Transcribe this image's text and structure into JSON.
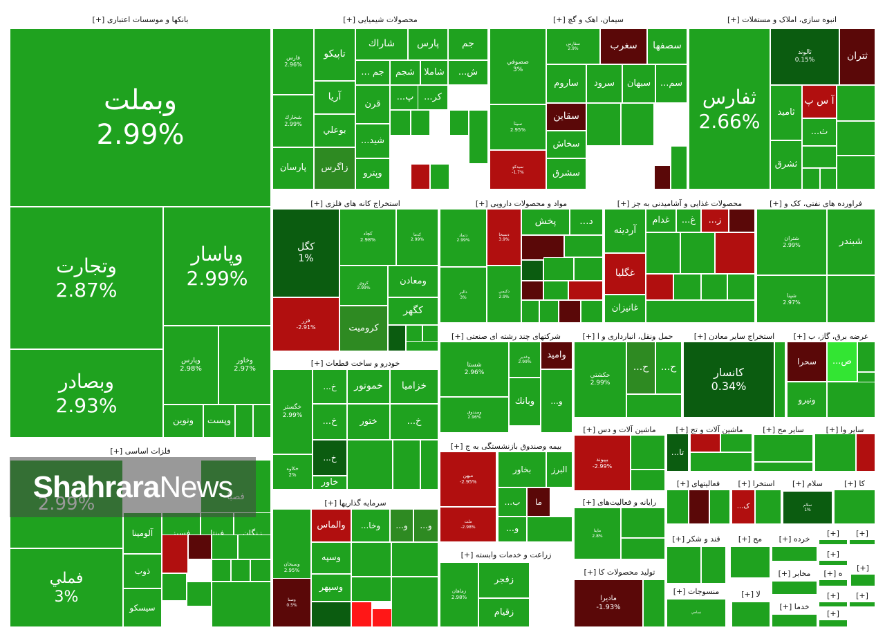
{
  "colors": {
    "G": "#1fa21f",
    "D": "#0b5c10",
    "M": "#2e8a22",
    "R": "#b10f0f",
    "M2": "#5a0808",
    "BR": "#ff1717",
    "LG": "#33e533"
  },
  "watermark": {
    "bold": "Shahrara",
    "light": "News"
  },
  "sectors": [
    {
      "title": "بانکها و موسسات اعتباری [+]",
      "tiles": [
        {
          "name": "وبملت",
          "pct": "2.99%",
          "c": "G"
        },
        {
          "name": "وتجارت",
          "pct": "2.87%",
          "c": "G"
        },
        {
          "name": "وپاسار",
          "pct": "2.99%",
          "c": "G"
        },
        {
          "name": "وبصادر",
          "pct": "2.93%",
          "c": "G"
        },
        {
          "name": "وپارس",
          "pct": "2.98%",
          "c": "G"
        },
        {
          "name": "وخاور",
          "pct": "2.97%",
          "c": "G"
        },
        {
          "name": "ونوین",
          "c": "G"
        },
        {
          "name": "وپست",
          "c": "G"
        },
        {
          "c": "G"
        },
        {
          "c": "G"
        }
      ]
    },
    {
      "title": "فلزات اساسی [+]",
      "tiles": [
        {
          "pct": "2.99%",
          "c": "G"
        },
        {
          "name": "فصبا",
          "c": "G"
        },
        {
          "name": "فملي",
          "pct": "3%",
          "c": "G"
        },
        {
          "name": "آلومينا",
          "c": "G"
        },
        {
          "name": "فسبز",
          "c": "G"
        },
        {
          "name": "فپنتا",
          "c": "G"
        },
        {
          "name": "زنگان",
          "c": "G"
        },
        {
          "name": "ذوب",
          "c": "G"
        },
        {
          "name": "سيسكو",
          "c": "G"
        },
        {
          "c": "R"
        },
        {
          "c": "M2"
        },
        {
          "c": "G"
        },
        {
          "c": "G"
        },
        {
          "c": "G"
        },
        {
          "c": "G"
        },
        {
          "c": "G"
        },
        {
          "c": "G"
        },
        {
          "c": "G"
        },
        {
          "c": "G"
        }
      ]
    },
    {
      "title": "محصولات شیمیایی [+]",
      "tiles": [
        {
          "name": "جم",
          "c": "G"
        },
        {
          "name": "پارس",
          "c": "G"
        },
        {
          "name": "شاراك",
          "c": "G"
        },
        {
          "name": "تاپيكو",
          "c": "G"
        },
        {
          "name": "فارس",
          "pct": "2.96%",
          "c": "G"
        },
        {
          "name": "آريا",
          "c": "G"
        },
        {
          "name": "جم ...",
          "c": "G"
        },
        {
          "name": "شجم",
          "c": "G"
        },
        {
          "name": "شاملا",
          "c": "G"
        },
        {
          "name": "ش...",
          "c": "G"
        },
        {
          "name": "پ...",
          "c": "G"
        },
        {
          "name": "كر...",
          "c": "G"
        },
        {
          "name": "قرن",
          "c": "G"
        },
        {
          "name": "شخارك",
          "pct": "2.99%",
          "c": "G"
        },
        {
          "name": "بوعلي",
          "c": "G"
        },
        {
          "name": "شيد...",
          "c": "G"
        },
        {
          "name": "پارسان",
          "c": "G"
        },
        {
          "name": "زاگرس",
          "c": "M"
        },
        {
          "name": "وپترو",
          "c": "G"
        },
        {
          "c": "R"
        },
        {
          "c": "G"
        },
        {
          "c": "G"
        },
        {
          "c": "G"
        },
        {
          "c": "G"
        },
        {
          "c": "G"
        }
      ]
    },
    {
      "title": "سیمان، اهک و گچ [+]",
      "tiles": [
        {
          "name": "صصوفي",
          "pct": "3%",
          "c": "G"
        },
        {
          "name": "سفارس",
          "pct": "2.9%",
          "c": "G"
        },
        {
          "name": "سغرب",
          "c": "M2"
        },
        {
          "name": "سصفها",
          "c": "G"
        },
        {
          "name": "ساروم",
          "c": "G"
        },
        {
          "name": "سرود",
          "c": "G"
        },
        {
          "name": "سبهان",
          "c": "G"
        },
        {
          "name": "سم...",
          "c": "G"
        },
        {
          "name": "سيتا",
          "pct": "2.95%",
          "c": "G"
        },
        {
          "name": "سقاين",
          "c": "M2"
        },
        {
          "name": "سخاش",
          "c": "G"
        },
        {
          "name": "سيدكو",
          "pct": "-1.7%",
          "c": "R"
        },
        {
          "name": "سشرق",
          "c": "G"
        },
        {
          "c": "G"
        },
        {
          "c": "G"
        },
        {
          "c": "M2"
        },
        {
          "c": "G"
        }
      ]
    },
    {
      "title": "انبوه سازی، املاک و مستغلات [+]",
      "tiles": [
        {
          "name": "ثفارس",
          "pct": "2.66%",
          "c": "G"
        },
        {
          "name": "ثالوند",
          "pct": "0.15%",
          "c": "D"
        },
        {
          "name": "ثتران",
          "c": "M2"
        },
        {
          "name": "آ س پ",
          "c": "R"
        },
        {
          "name": "ثاميد",
          "c": "G"
        },
        {
          "name": "ث...",
          "c": "G"
        },
        {
          "name": "ثشرق",
          "c": "G"
        },
        {
          "c": "G"
        },
        {
          "c": "G"
        },
        {
          "c": "G"
        },
        {
          "c": "G"
        },
        {
          "c": "G"
        },
        {
          "c": "G"
        }
      ]
    },
    {
      "title": "استخراج کانه های فلزی [+]",
      "tiles": [
        {
          "name": "كگل",
          "pct": "1%",
          "c": "D"
        },
        {
          "name": "كچاد",
          "pct": "2.98%",
          "c": "G"
        },
        {
          "name": "كدما",
          "pct": "2.99%",
          "c": "G"
        },
        {
          "name": "فزر",
          "pct": "-2.91%",
          "c": "R"
        },
        {
          "name": "كروي",
          "pct": "2.99%",
          "c": "G"
        },
        {
          "name": "ومعادن",
          "c": "G"
        },
        {
          "name": "كگهر",
          "c": "G"
        },
        {
          "name": "كروميت",
          "c": "M"
        },
        {
          "c": "D"
        },
        {
          "c": "G"
        },
        {
          "c": "G"
        },
        {
          "c": "G"
        }
      ]
    },
    {
      "title": "مواد و محصولات دارویی [+]",
      "tiles": [
        {
          "name": "دتماد",
          "pct": "2.99%",
          "c": "G"
        },
        {
          "name": "دسبحا",
          "pct": "3.9%",
          "c": "R"
        },
        {
          "name": "پخش",
          "c": "G"
        },
        {
          "name": "د...",
          "c": "G"
        },
        {
          "name": "د...",
          "c": "G"
        },
        {
          "name": "دالبر",
          "pct": "3%",
          "c": "G"
        },
        {
          "name": "دكيمي",
          "pct": "2.9%",
          "c": "G"
        },
        {
          "c": "M2"
        },
        {
          "c": "G"
        },
        {
          "c": "D"
        },
        {
          "c": "G"
        },
        {
          "c": "G"
        },
        {
          "c": "M2"
        },
        {
          "c": "G"
        },
        {
          "c": "R"
        },
        {
          "c": "G"
        },
        {
          "c": "G"
        },
        {
          "c": "M2"
        },
        {
          "c": "G"
        }
      ]
    },
    {
      "title": "محصولات غذایی و آشامیدنی به جز [+]",
      "tiles": [
        {
          "name": "آردينه",
          "c": "G"
        },
        {
          "name": "غدام",
          "c": "G"
        },
        {
          "name": "غ...",
          "c": "G"
        },
        {
          "name": "ز...",
          "c": "R"
        },
        {
          "c": "M2"
        },
        {
          "name": "غگليا",
          "c": "R"
        },
        {
          "name": "غانيزان",
          "c": "G"
        },
        {
          "c": "G"
        },
        {
          "c": "G"
        },
        {
          "c": "R"
        },
        {
          "c": "R"
        },
        {
          "c": "G"
        },
        {
          "c": "G"
        },
        {
          "c": "G"
        },
        {
          "c": "G"
        }
      ]
    },
    {
      "title": "فراورده های نفتی، کک و [+]",
      "tiles": [
        {
          "name": "شتران",
          "pct": "2.99%",
          "c": "G"
        },
        {
          "name": "شبندر",
          "c": "G"
        },
        {
          "name": "شپنا",
          "pct": "2.97%",
          "c": "G"
        },
        {
          "c": "G"
        }
      ]
    },
    {
      "title": "خودرو و ساخت قطعات [+]",
      "tiles": [
        {
          "name": "خگستر",
          "pct": "2.99%",
          "c": "G"
        },
        {
          "name": "خ...",
          "c": "G"
        },
        {
          "name": "خموتور",
          "c": "G"
        },
        {
          "name": "خزاميا",
          "c": "G"
        },
        {
          "name": "خ...",
          "c": "G"
        },
        {
          "name": "ختور",
          "c": "G"
        },
        {
          "name": "خ...",
          "c": "G"
        },
        {
          "name": "خ...",
          "c": "D"
        },
        {
          "name": "خكاوه",
          "pct": "2%",
          "c": "G"
        },
        {
          "name": "خاور",
          "c": "G"
        },
        {
          "c": "G"
        },
        {
          "c": "G"
        },
        {
          "c": "G"
        }
      ]
    },
    {
      "title": "شرکتهای چند رشته ای صنعتی [+]",
      "tiles": [
        {
          "name": "شستا",
          "pct": "2.96%",
          "c": "G"
        },
        {
          "name": "وغدير",
          "pct": "2.99%",
          "c": "G"
        },
        {
          "name": "واميد",
          "c": "M2"
        },
        {
          "name": "وبانك",
          "c": "G"
        },
        {
          "name": "وصندوق",
          "pct": "2.96%",
          "c": "G"
        },
        {
          "name": "و...",
          "c": "G"
        }
      ]
    },
    {
      "title": "حمل ونقل، انبارداری و ا [+]",
      "tiles": [
        {
          "name": "حكشتي",
          "pct": "2.99%",
          "c": "G"
        },
        {
          "name": "ح...",
          "c": "M"
        },
        {
          "name": "ح...",
          "c": "G"
        },
        {
          "c": "G"
        }
      ]
    },
    {
      "title": "استخراج سایر معادن [+]",
      "tiles": [
        {
          "name": "كانسار",
          "pct": "0.34%",
          "c": "D"
        },
        {
          "c": "G"
        }
      ]
    },
    {
      "title": "عرضه برق، گاز، ب [+]",
      "tiles": [
        {
          "name": "سحرا",
          "c": "M2"
        },
        {
          "name": "ص...",
          "c": "LG"
        },
        {
          "name": "ونيرو",
          "c": "G"
        },
        {
          "c": "G"
        },
        {
          "c": "G"
        },
        {
          "c": "G"
        }
      ]
    },
    {
      "title": "سرمایه گذاریها [+]",
      "tiles": [
        {
          "name": "وسبحان",
          "pct": "2.95%",
          "c": "G"
        },
        {
          "name": "والماس",
          "c": "R"
        },
        {
          "name": "وخا...",
          "c": "G"
        },
        {
          "name": "و...",
          "c": "M"
        },
        {
          "name": "و...",
          "c": "M"
        },
        {
          "name": "وسپه",
          "c": "G"
        },
        {
          "name": "وصنا",
          "pct": "0.5%",
          "c": "M2"
        },
        {
          "name": "وسپهر",
          "c": "G"
        },
        {
          "c": "D"
        },
        {
          "c": "BR"
        },
        {
          "c": "BR"
        },
        {
          "c": "G"
        },
        {
          "c": "G"
        },
        {
          "c": "G"
        },
        {
          "c": "G"
        }
      ]
    },
    {
      "title": "بیمه وصندوق بازنشستگی به ج [+]",
      "tiles": [
        {
          "name": "ميهن",
          "pct": "-2.95%",
          "c": "R"
        },
        {
          "name": "البرز",
          "c": "G"
        },
        {
          "name": "بخاور",
          "c": "G"
        },
        {
          "name": "ما",
          "c": "M2"
        },
        {
          "name": "ب...",
          "c": "G"
        },
        {
          "name": "ملت",
          "pct": "-2.98%",
          "c": "R"
        },
        {
          "name": "و...",
          "c": "G"
        },
        {
          "c": "G"
        }
      ]
    },
    {
      "title": "زراعت و خدمات وابسته [+]",
      "tiles": [
        {
          "name": "زماهان",
          "pct": "2.98%",
          "c": "G"
        },
        {
          "name": "زفجر",
          "c": "G"
        },
        {
          "name": "زقيام",
          "c": "G"
        }
      ]
    },
    {
      "title": "ماشین آلات و دس [+]",
      "tiles": [
        {
          "name": "بپيوند",
          "pct": "-2.99%",
          "c": "R"
        },
        {
          "c": "G"
        },
        {
          "c": "G"
        }
      ]
    },
    {
      "title": "رایانه و فعالیت‌های [+]",
      "tiles": [
        {
          "name": "ماپنا",
          "pct": "2.8%",
          "c": "G"
        },
        {
          "c": "G"
        },
        {
          "c": "G"
        }
      ]
    },
    {
      "title": "تولید محصولات کا [+]",
      "tiles": [
        {
          "name": "مادیرا",
          "pct": "-1.93%",
          "c": "M2"
        },
        {
          "c": "G"
        }
      ]
    },
    {
      "title": "ماشین آلات و تج [+]",
      "tiles": [
        {
          "name": "تا...",
          "c": "D"
        },
        {
          "c": "R"
        },
        {
          "c": "G"
        },
        {
          "c": "G"
        }
      ]
    },
    {
      "title": "سایر مح [+]",
      "tiles": [
        {
          "c": "G"
        },
        {
          "c": "G"
        }
      ]
    },
    {
      "title": "سایر وا [+]",
      "tiles": [
        {
          "c": "G"
        },
        {
          "c": "R"
        }
      ]
    },
    {
      "title": "فعالیتهای [+]",
      "tiles": [
        {
          "c": "G"
        },
        {
          "c": "M2"
        },
        {
          "c": "G"
        }
      ]
    },
    {
      "title": "استخرا [+]",
      "tiles": [
        {
          "name": "ک...",
          "c": "R"
        },
        {
          "c": "G"
        }
      ]
    },
    {
      "title": "سلام [+]",
      "tiles": [
        {
          "name": "سلام",
          "pct": "1%",
          "c": "D"
        },
        {
          "c": "G"
        }
      ]
    },
    {
      "title": "کا [+]",
      "tiles": [
        {
          "c": "G"
        }
      ]
    },
    {
      "title": "قند و شکر [+]",
      "tiles": [
        {
          "c": "G"
        },
        {
          "c": "G"
        }
      ]
    },
    {
      "title": "منسوجات [+]",
      "tiles": [
        {
          "name": "نساجي",
          "c": "G"
        },
        {
          "c": "G"
        }
      ]
    },
    {
      "title": "مح [+]",
      "tiles": [
        {
          "c": "G"
        }
      ]
    },
    {
      "title": "خرده [+]",
      "tiles": [
        {
          "c": "G"
        }
      ]
    },
    {
      "title": "مخابر [+]",
      "tiles": [
        {
          "c": "G"
        }
      ]
    },
    {
      "title": "خدما [+]",
      "tiles": [
        {
          "c": "G"
        }
      ]
    },
    {
      "title": "لا [+]",
      "tiles": [
        {
          "c": "G"
        }
      ]
    },
    {
      "title": "[+]",
      "tiles": [
        {
          "c": "G"
        }
      ]
    },
    {
      "title": "[+]",
      "tiles": [
        {
          "c": "G"
        }
      ]
    },
    {
      "title": "[+]",
      "tiles": [
        {
          "c": "G"
        }
      ]
    },
    {
      "title": "ه [+]",
      "tiles": [
        {
          "c": "G"
        }
      ]
    },
    {
      "title": "[+]",
      "tiles": [
        {
          "c": "G"
        }
      ]
    },
    {
      "title": "[+]",
      "tiles": [
        {
          "c": "G"
        }
      ]
    },
    {
      "title": "[+]",
      "tiles": [
        {
          "c": "G"
        }
      ]
    },
    {
      "title": "[+]",
      "tiles": [
        {
          "c": "G"
        }
      ]
    }
  ]
}
